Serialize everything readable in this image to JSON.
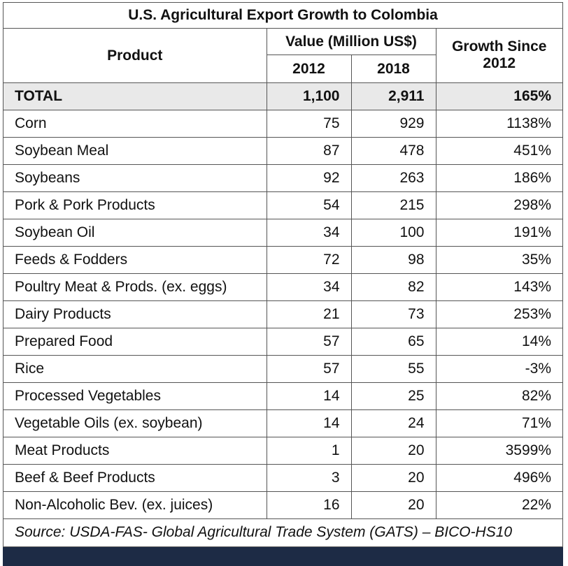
{
  "table": {
    "title": "U.S. Agricultural Export Growth to Colombia",
    "headers": {
      "product": "Product",
      "value_group": "Value (Million US$)",
      "year_a": "2012",
      "year_b": "2018",
      "growth": "Growth Since 2012"
    },
    "total": {
      "product": "TOTAL",
      "v2012": "1,100",
      "v2018": "2,911",
      "growth": "165%"
    },
    "rows": [
      {
        "product": "Corn",
        "v2012": "75",
        "v2018": "929",
        "growth": "1138%"
      },
      {
        "product": "Soybean Meal",
        "v2012": "87",
        "v2018": "478",
        "growth": "451%"
      },
      {
        "product": "Soybeans",
        "v2012": "92",
        "v2018": "263",
        "growth": "186%"
      },
      {
        "product": "Pork & Pork Products",
        "v2012": "54",
        "v2018": "215",
        "growth": "298%"
      },
      {
        "product": "Soybean Oil",
        "v2012": "34",
        "v2018": "100",
        "growth": "191%"
      },
      {
        "product": "Feeds & Fodders",
        "v2012": "72",
        "v2018": "98",
        "growth": "35%"
      },
      {
        "product": "Poultry Meat & Prods. (ex. eggs)",
        "v2012": "34",
        "v2018": "82",
        "growth": "143%"
      },
      {
        "product": "Dairy Products",
        "v2012": "21",
        "v2018": "73",
        "growth": "253%"
      },
      {
        "product": "Prepared Food",
        "v2012": "57",
        "v2018": "65",
        "growth": "14%"
      },
      {
        "product": "Rice",
        "v2012": "57",
        "v2018": "55",
        "growth": "-3%"
      },
      {
        "product": "Processed Vegetables",
        "v2012": "14",
        "v2018": "25",
        "growth": "82%"
      },
      {
        "product": "Vegetable Oils (ex. soybean)",
        "v2012": "14",
        "v2018": "24",
        "growth": "71%"
      },
      {
        "product": "Meat Products",
        "v2012": "1",
        "v2018": "20",
        "growth": "3599%"
      },
      {
        "product": "Beef & Beef Products",
        "v2012": "3",
        "v2018": "20",
        "growth": "496%"
      },
      {
        "product": "Non-Alcoholic Bev. (ex. juices)",
        "v2012": "16",
        "v2018": "20",
        "growth": "22%"
      }
    ],
    "source": "Source: USDA-FAS- Global Agricultural Trade System (GATS) – BICO-HS10"
  },
  "colors": {
    "total_row_bg": "#e9e9e9",
    "footer_bar": "#1d2b45",
    "border": "#555555"
  }
}
